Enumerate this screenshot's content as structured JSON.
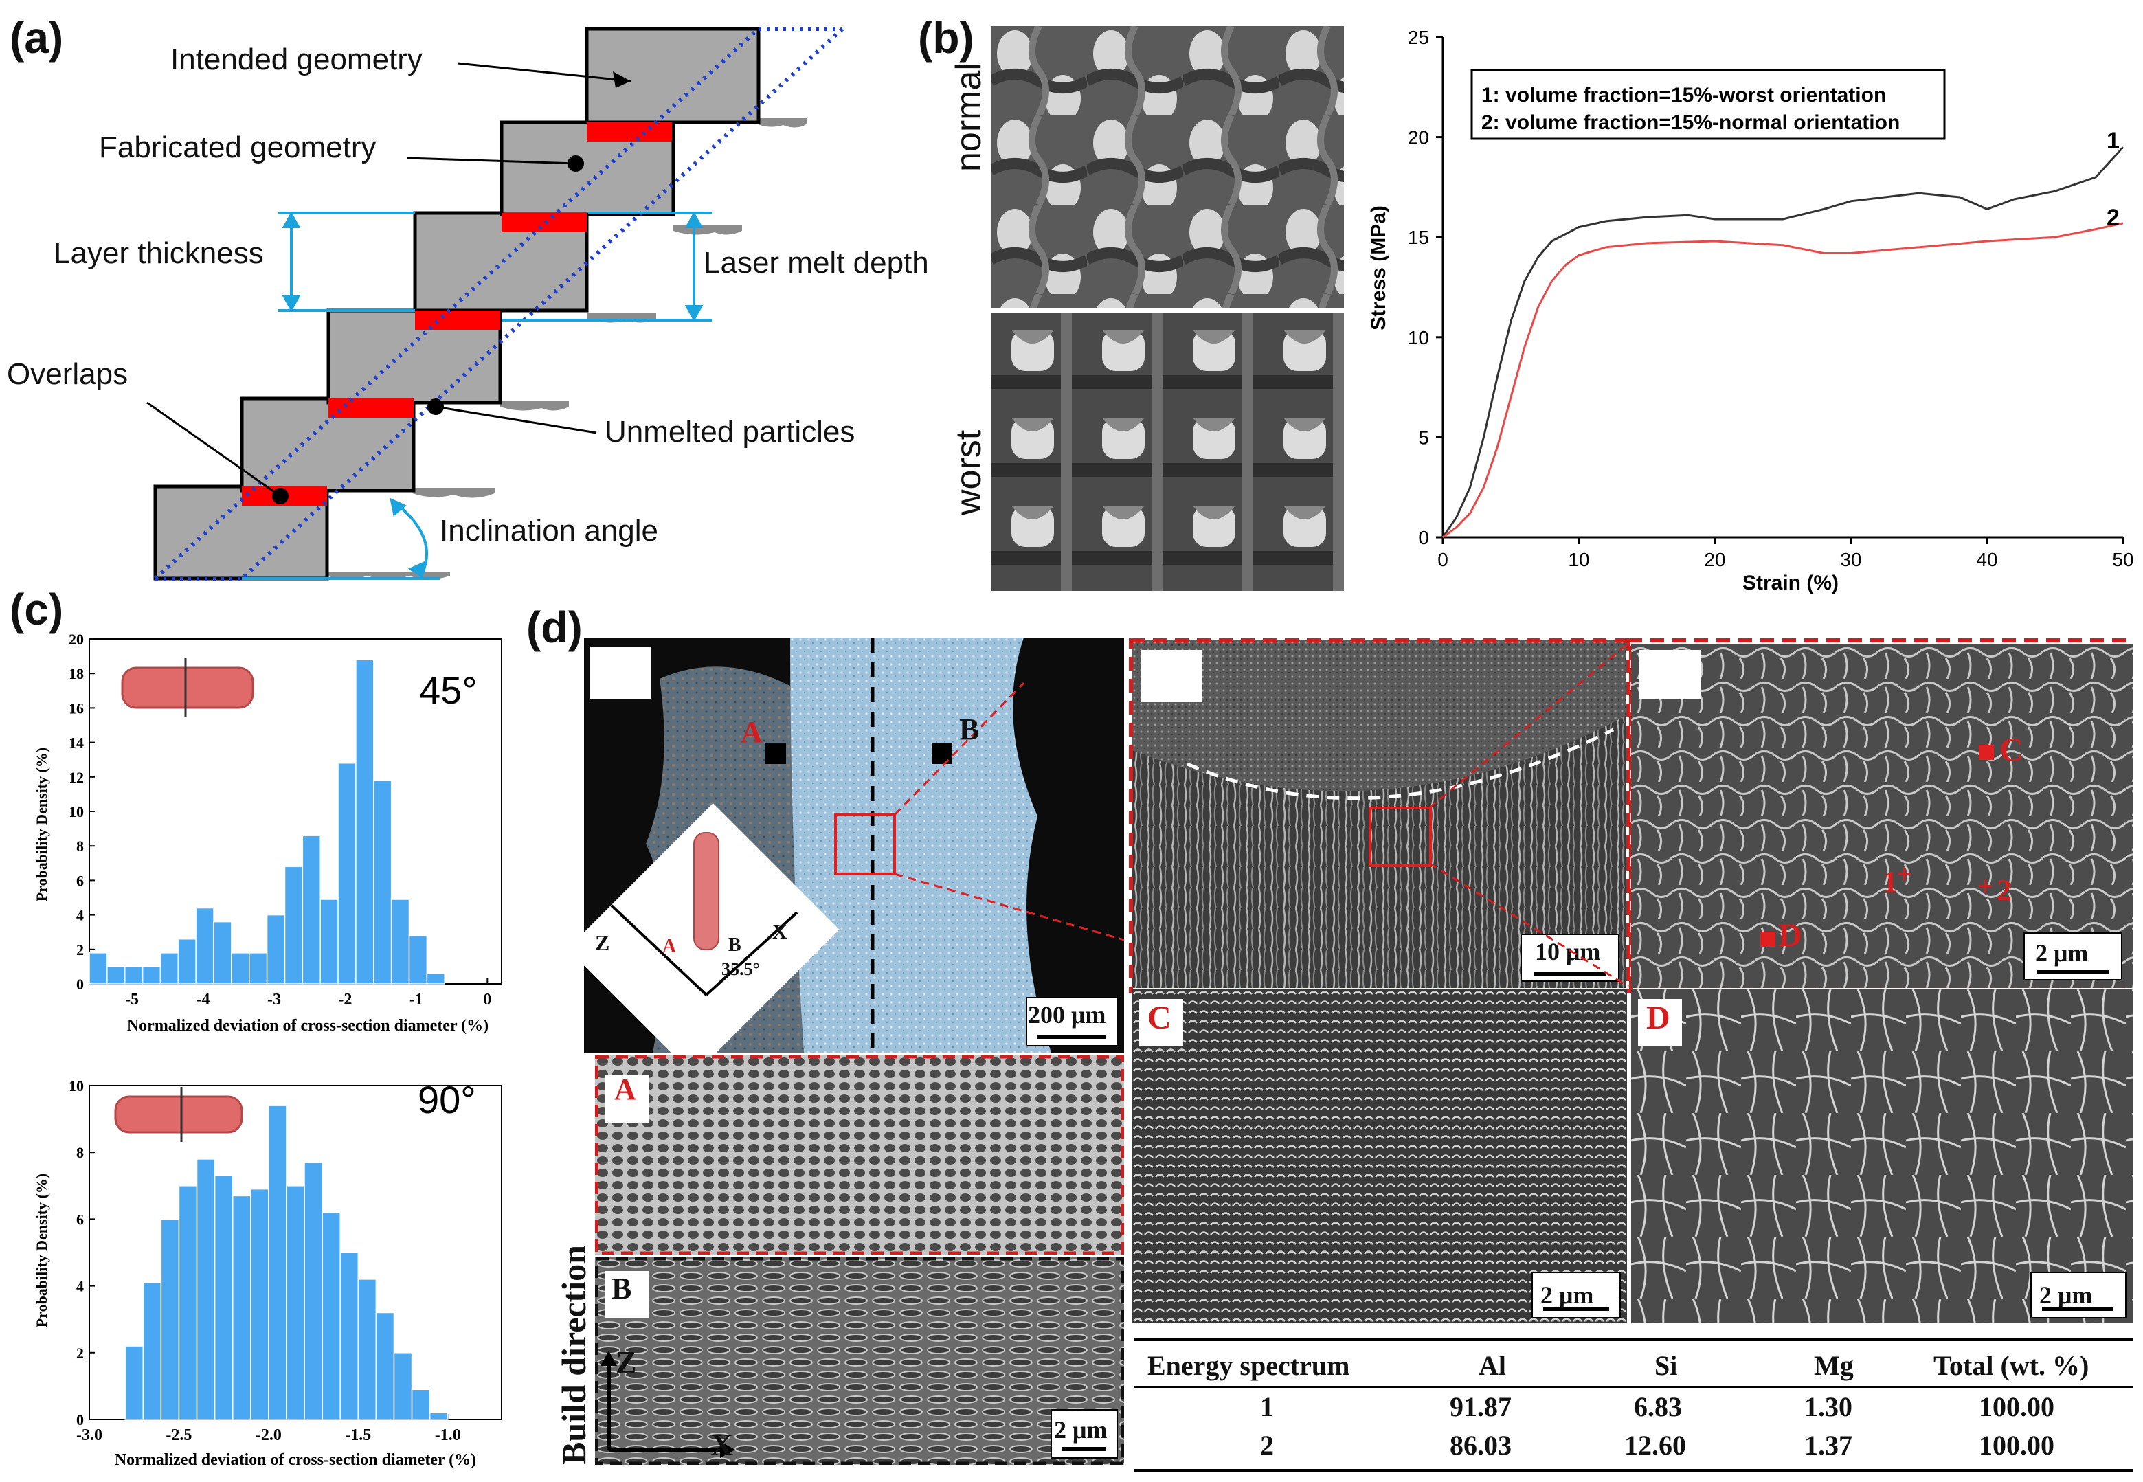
{
  "panel_labels": {
    "a": "(a)",
    "b": "(b)",
    "c": "(c)",
    "d": "(d)"
  },
  "panel_a": {
    "labels": {
      "intended": "Intended geometry",
      "fabricated": "Fabricated geometry",
      "layer_thickness": "Layer thickness",
      "laser_melt_depth": "Laser melt depth",
      "overlaps": "Overlaps",
      "unmelted": "Unmelted particles",
      "inclination": "Inclination angle"
    },
    "colors": {
      "layer": "#a8a8a8",
      "overlap": "#ff0000",
      "guide": "#1f3fd0",
      "dimension": "#1aa3dd"
    }
  },
  "panel_b": {
    "image_labels": {
      "normal": "normal",
      "worst": "worst"
    },
    "chart_data": {
      "type": "line",
      "xlabel": "Strain (%)",
      "ylabel": "Stress (MPa)",
      "xlim": [
        0,
        50
      ],
      "ylim": [
        0,
        25
      ],
      "xticks": [
        "0",
        "10",
        "20",
        "30",
        "40",
        "50"
      ],
      "yticks": [
        "0",
        "5",
        "10",
        "15",
        "20",
        "25"
      ],
      "legend": [
        "1: volume fraction=15%-worst orientation",
        "2: volume fraction=15%-normal orientation"
      ],
      "series": [
        {
          "name": "1",
          "color": "#333333",
          "x": [
            0,
            1,
            2,
            3,
            4,
            5,
            6,
            7,
            8,
            10,
            12,
            15,
            18,
            20,
            25,
            28,
            30,
            35,
            38,
            40,
            42,
            45,
            48,
            50
          ],
          "y": [
            0,
            1.0,
            2.5,
            5.0,
            8.0,
            10.8,
            12.8,
            14.0,
            14.8,
            15.5,
            15.8,
            16.0,
            16.1,
            15.9,
            15.9,
            16.4,
            16.8,
            17.2,
            17.0,
            16.4,
            16.9,
            17.3,
            18.0,
            19.5
          ]
        },
        {
          "name": "2",
          "color": "#e84a4a",
          "x": [
            0,
            1,
            2,
            3,
            4,
            5,
            6,
            7,
            8,
            9,
            10,
            12,
            15,
            20,
            25,
            28,
            30,
            35,
            40,
            45,
            48,
            50
          ],
          "y": [
            0,
            0.5,
            1.2,
            2.5,
            4.5,
            7.0,
            9.5,
            11.5,
            12.8,
            13.6,
            14.1,
            14.5,
            14.7,
            14.8,
            14.6,
            14.2,
            14.2,
            14.5,
            14.8,
            15.0,
            15.4,
            15.7
          ]
        }
      ]
    }
  },
  "panel_c": {
    "charts": [
      {
        "type": "bar",
        "angle_label": "45°",
        "xlabel": "Normalized deviation of cross-section diameter (%)",
        "ylabel": "Probability Density (%)",
        "xlim": [
          -5.6,
          0.2
        ],
        "ylim": [
          0,
          20
        ],
        "xticks": [
          "-5",
          "-4",
          "-3",
          "-2",
          "-1",
          "0"
        ],
        "yticks": [
          "0",
          "2",
          "4",
          "6",
          "8",
          "10",
          "12",
          "14",
          "16",
          "18",
          "20"
        ],
        "bin_start": -5.6,
        "bin_width": 0.25,
        "values": [
          1.8,
          1.0,
          1.0,
          1.0,
          1.8,
          2.6,
          4.4,
          3.6,
          1.8,
          1.8,
          4.0,
          6.8,
          8.6,
          4.9,
          12.8,
          18.8,
          11.8,
          4.9,
          2.8,
          0.6
        ]
      },
      {
        "type": "bar",
        "angle_label": "90°",
        "xlabel": "Normalized deviation of cross-section diameter (%)",
        "ylabel": "Probability Density (%)",
        "xlim": [
          -3.0,
          -0.7
        ],
        "ylim": [
          0,
          10
        ],
        "xticks": [
          "-3.0",
          "-2.5",
          "-2.0",
          "-1.5",
          "-1.0"
        ],
        "yticks": [
          "0",
          "2",
          "4",
          "6",
          "8",
          "10"
        ],
        "bin_start": -2.8,
        "bin_width": 0.1,
        "values": [
          2.2,
          4.1,
          6.0,
          7.0,
          7.8,
          7.3,
          6.7,
          6.9,
          9.4,
          7.0,
          7.7,
          6.2,
          5.0,
          4.2,
          3.2,
          2.0,
          0.9,
          0.2
        ]
      }
    ],
    "bar_color": "#4aa8f2"
  },
  "panel_d": {
    "overview": {
      "marker_a": "A",
      "marker_b": "B",
      "inset_z": "Z",
      "inset_x": "X",
      "inset_a": "A",
      "inset_b": "B",
      "inset_angle": "35.5°",
      "scale": "200 μm"
    },
    "zoom": {
      "scale": "10 μm"
    },
    "high_mag": {
      "marker_c": "C",
      "marker_d": "D",
      "point_1": "1",
      "point_2": "2",
      "scale": "2 μm"
    },
    "sub_a": {
      "label": "A"
    },
    "sub_b": {
      "label": "B",
      "scale": "2 μm",
      "axis_z": "Z",
      "axis_x": "X"
    },
    "sub_c": {
      "label": "C",
      "scale": "2 μm"
    },
    "sub_d": {
      "label": "D",
      "scale": "2 μm"
    },
    "build_direction": "Build direction",
    "table": {
      "headers": [
        "Energy spectrum",
        "Al",
        "Si",
        "Mg",
        "Total (wt. %)"
      ],
      "rows": [
        [
          "1",
          "91.87",
          "6.83",
          "1.30",
          "100.00"
        ],
        [
          "2",
          "86.03",
          "12.60",
          "1.37",
          "100.00"
        ]
      ]
    }
  }
}
